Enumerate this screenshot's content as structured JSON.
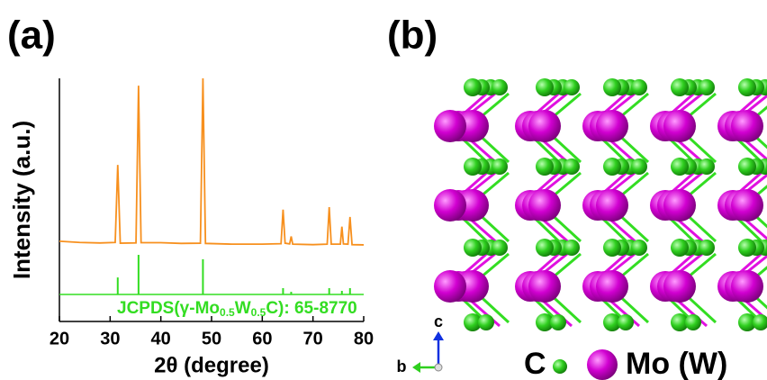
{
  "panels": {
    "a": "(a)",
    "b": "(b)"
  },
  "chart_data": {
    "type": "line",
    "x_label": "2θ (degree)",
    "y_label": "Intensity (a.u.)",
    "xlim": [
      20,
      80
    ],
    "ylim": [
      0,
      100
    ],
    "xticks": [
      20,
      30,
      40,
      50,
      60,
      70,
      80
    ],
    "series": [
      {
        "color": "#f7901e",
        "x": [
          20,
          24,
          28,
          31.0,
          31.5,
          32.0,
          35.1,
          35.6,
          36.1,
          40,
          44,
          47.8,
          48.3,
          48.8,
          54,
          60,
          63.7,
          64.1,
          64.5,
          65.4,
          65.7,
          66.0,
          70,
          72.8,
          73.2,
          73.6,
          75.4,
          75.7,
          76.0,
          76.9,
          77.3,
          77.7,
          80
        ],
        "values": [
          33,
          32.5,
          32.3,
          32.5,
          64.4,
          32.2,
          32.3,
          97,
          32.4,
          32.4,
          32.1,
          32.2,
          100,
          32.1,
          31.8,
          31.8,
          32,
          46,
          32.2,
          31.9,
          35,
          31.8,
          31.6,
          31.8,
          47,
          31.8,
          31.8,
          39,
          31.9,
          31.8,
          43,
          31.6,
          31.5
        ]
      }
    ],
    "reference": {
      "color": "#33dd22",
      "baseline": 11.1,
      "label_parts": [
        "JCPDS(γ-Mo",
        "0.5",
        "W",
        "0.5",
        "C): 65-8770"
      ],
      "x": [
        31.5,
        35.6,
        48.3,
        64.1,
        65.7,
        73.2,
        75.7,
        77.3
      ],
      "values": [
        18.1,
        27.4,
        25.6,
        13.7,
        12.2,
        13.7,
        12.6,
        13.7
      ]
    }
  },
  "structure": {
    "axis_c": "c",
    "axis_b": "b",
    "legend": [
      "C",
      "Mo (W)"
    ]
  }
}
